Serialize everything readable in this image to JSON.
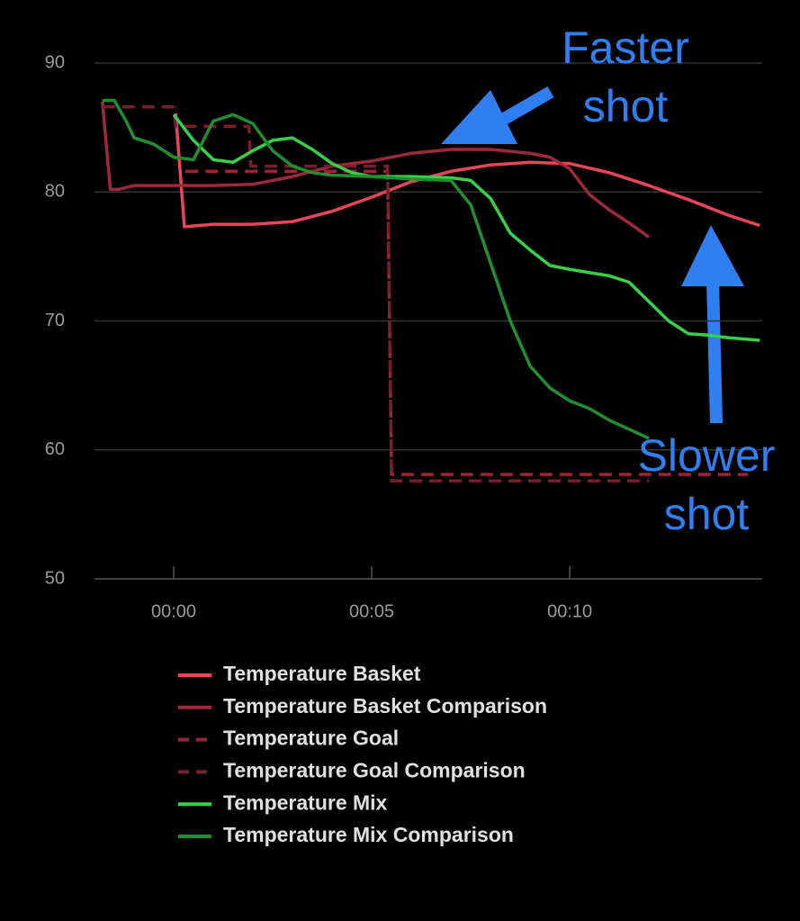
{
  "chart_data": {
    "type": "line",
    "xlim": [
      -2,
      14.86
    ],
    "ylim": [
      50,
      90
    ],
    "xticks": [
      {
        "value": 0,
        "label": "00:00"
      },
      {
        "value": 5,
        "label": "00:05"
      },
      {
        "value": 10,
        "label": "00:10"
      }
    ],
    "yticks": [
      50,
      60,
      70,
      80,
      90
    ],
    "grid": true,
    "legend": "bottom",
    "series": [
      {
        "name": "Temperature Basket",
        "color": "#e8455a",
        "dash": false,
        "x": [
          0.05,
          0.27,
          1,
          2,
          3,
          4,
          5,
          6,
          7,
          8,
          9,
          10,
          11,
          12,
          13,
          14,
          14.8
        ],
        "values": [
          86.1,
          77.3,
          77.5,
          77.5,
          77.7,
          78.5,
          79.6,
          80.8,
          81.6,
          82.1,
          82.3,
          82.2,
          81.5,
          80.5,
          79.4,
          78.2,
          77.4
        ]
      },
      {
        "name": "Temperature Basket Comparison",
        "color": "#9c2a3c",
        "dash": false,
        "x": [
          -1.8,
          -1.6,
          -1.4,
          -1,
          0,
          1,
          2,
          3,
          4,
          5,
          6,
          7,
          8,
          9,
          9.5,
          10,
          10.5,
          11,
          11.5,
          12
        ],
        "values": [
          87,
          80.2,
          80.2,
          80.5,
          80.5,
          80.5,
          80.6,
          81.2,
          82,
          82.4,
          83,
          83.3,
          83.3,
          83,
          82.7,
          81.8,
          79.8,
          78.6,
          77.6,
          76.5
        ]
      },
      {
        "name": "Temperature Goal",
        "color": "#9a2438",
        "dash": true,
        "x": [
          0.3,
          5.4,
          5.5,
          14.5
        ],
        "values": [
          81.6,
          81.6,
          58.1,
          58.1
        ]
      },
      {
        "name": "Temperature Goal Comparison",
        "color": "#7a1e2e",
        "dash": true,
        "x": [
          -1.8,
          0,
          0.05,
          1.9,
          1.95,
          5.4,
          5.5,
          12
        ],
        "values": [
          86.6,
          86.6,
          85.1,
          85.1,
          82,
          82,
          57.6,
          57.6
        ]
      },
      {
        "name": "Temperature Mix",
        "color": "#36d04a",
        "dash": false,
        "x": [
          0,
          0.5,
          1,
          1.5,
          2,
          2.5,
          3,
          3.5,
          4,
          4.5,
          5,
          6,
          7,
          7.5,
          8,
          8.5,
          9,
          9.5,
          10,
          11,
          11.5,
          12,
          12.5,
          13,
          13.5,
          14,
          14.8
        ],
        "values": [
          86,
          84,
          82.5,
          82.3,
          83.2,
          84,
          84.2,
          83.3,
          82.2,
          81.5,
          81.2,
          81.2,
          81.1,
          80.9,
          79.5,
          76.8,
          75.5,
          74.3,
          74,
          73.5,
          73,
          71.5,
          70,
          69,
          68.9,
          68.7,
          68.5
        ]
      },
      {
        "name": "Temperature Mix Comparison",
        "color": "#218f2e",
        "dash": false,
        "x": [
          -1.8,
          -1.5,
          -1.2,
          -1,
          -0.5,
          0,
          0.5,
          1,
          1.5,
          2,
          2.5,
          3,
          3.5,
          4,
          5,
          6,
          7,
          7.5,
          8,
          8.5,
          9,
          9.5,
          10,
          10.5,
          11,
          11.5,
          12
        ],
        "values": [
          87.1,
          87.1,
          85.5,
          84.2,
          83.7,
          82.7,
          82.5,
          85.5,
          86,
          85.3,
          83.2,
          82,
          81.5,
          81.3,
          81.2,
          81,
          80.9,
          79,
          74.5,
          70,
          66.5,
          64.8,
          63.8,
          63.2,
          62.3,
          61.6,
          60.9
        ]
      }
    ],
    "annotations": [
      {
        "lines": [
          "Faster",
          "shot"
        ],
        "color": "#2f7ff0"
      },
      {
        "lines": [
          "Slower",
          "shot"
        ],
        "color": "#2f7ff0"
      }
    ]
  }
}
